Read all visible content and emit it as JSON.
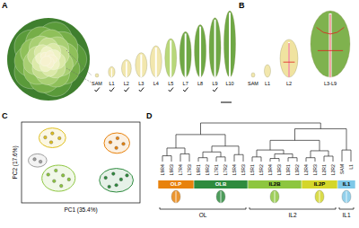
{
  "figure": {
    "panel_labels": [
      "A",
      "B",
      "C",
      "D"
    ],
    "A": {
      "stages": [
        "SAM",
        "L1",
        "L2",
        "L3",
        "L4",
        "L5",
        "L7",
        "L8",
        "L9",
        "L10"
      ],
      "sampled": [
        true,
        true,
        true,
        true,
        false,
        true,
        true,
        false,
        true,
        false
      ]
    },
    "B": {
      "stages": [
        "SAM",
        "L1",
        "L2",
        "L3-L9"
      ]
    }
  },
  "chart_data": [
    {
      "type": "scatter",
      "xlabel": "PC1 (35.4%)",
      "ylabel": "PC2 (17.6%)",
      "xlim": [
        -1,
        1
      ],
      "ylim": [
        -1,
        1
      ],
      "tick_labels": false,
      "series": [
        {
          "color": "#9e9e9e",
          "x": [
            -0.78,
            -0.68
          ],
          "values": [
            0.08,
            0.02
          ]
        },
        {
          "color": "#e0c020",
          "x": [
            -0.6,
            -0.48,
            -0.36,
            -0.5
          ],
          "values": [
            0.62,
            0.72,
            0.6,
            0.5
          ]
        },
        {
          "color": "#e8820c",
          "x": [
            0.5,
            0.62,
            0.72,
            0.6
          ],
          "values": [
            0.5,
            0.6,
            0.46,
            0.36
          ]
        },
        {
          "color": "#8dc63f",
          "x": [
            -0.55,
            -0.42,
            -0.3,
            -0.45,
            -0.2,
            -0.33
          ],
          "values": [
            -0.3,
            -0.2,
            -0.32,
            -0.46,
            -0.42,
            -0.58
          ]
        },
        {
          "color": "#2e8b3e",
          "x": [
            0.42,
            0.55,
            0.68,
            0.6,
            0.78,
            0.48
          ],
          "values": [
            -0.38,
            -0.28,
            -0.42,
            -0.56,
            -0.32,
            -0.6
          ]
        }
      ]
    },
    {
      "type": "dendrogram",
      "ylim": [
        0,
        1
      ],
      "tick_labels": "x",
      "leaves": [
        "L9R4",
        "L9R3",
        "L7R4",
        "L7R3",
        "L9R1",
        "L9R2",
        "L7R1",
        "L7R2",
        "L5R4",
        "L5R3",
        "L5R1",
        "L5R2",
        "L3R4",
        "L3R3",
        "L3R1",
        "L3R2",
        "L2R4",
        "L2R3",
        "L2R1",
        "L2R2",
        "SAM",
        "L1"
      ],
      "tree": {
        "height": 1.0,
        "children": [
          {
            "height": 0.7,
            "children": [
              {
                "height": 0.35,
                "children": [
                  {
                    "height": 0.15,
                    "children": [
                      0,
                      1
                    ]
                  },
                  {
                    "height": 0.2,
                    "children": [
                      2,
                      3
                    ]
                  }
                ]
              },
              {
                "height": 0.4,
                "children": [
                  {
                    "height": 0.25,
                    "children": [
                      {
                        "height": 0.1,
                        "children": [
                          4,
                          5
                        ]
                      },
                      {
                        "height": 0.12,
                        "children": [
                          6,
                          7
                        ]
                      }
                    ]
                  },
                  {
                    "height": 0.18,
                    "children": [
                      8,
                      9
                    ]
                  }
                ]
              }
            ]
          },
          {
            "height": 0.85,
            "children": [
              {
                "height": 0.55,
                "children": [
                  {
                    "height": 0.3,
                    "children": [
                      {
                        "height": 0.12,
                        "children": [
                          10,
                          11
                        ]
                      },
                      {
                        "height": 0.2,
                        "children": [
                          {
                            "height": 0.08,
                            "children": [
                              12,
                              13
                            ]
                          },
                          {
                            "height": 0.1,
                            "children": [
                              14,
                              15
                            ]
                          }
                        ]
                      }
                    ]
                  },
                  {
                    "height": 0.28,
                    "children": [
                      {
                        "height": 0.1,
                        "children": [
                          16,
                          17
                        ]
                      },
                      {
                        "height": 0.14,
                        "children": [
                          18,
                          19
                        ]
                      }
                    ]
                  }
                ]
              },
              {
                "height": 0.3,
                "children": [
                  20,
                  21
                ]
              }
            ]
          }
        ]
      },
      "groups": [
        {
          "label": "OLP",
          "color": "#e8820c",
          "count": 4
        },
        {
          "label": "OLB",
          "color": "#2e8b3e",
          "count": 6
        },
        {
          "label": "IL2B",
          "color": "#8dc63f",
          "count": 6
        },
        {
          "label": "IL2P",
          "color": "#d4d62a",
          "count": 4
        },
        {
          "label": "IL1",
          "color": "#7fc8e8",
          "count": 2
        }
      ],
      "clusters": [
        {
          "label": "OL",
          "count": 10
        },
        {
          "label": "IL2",
          "count": 10
        },
        {
          "label": "IL1",
          "count": 2
        }
      ]
    }
  ]
}
